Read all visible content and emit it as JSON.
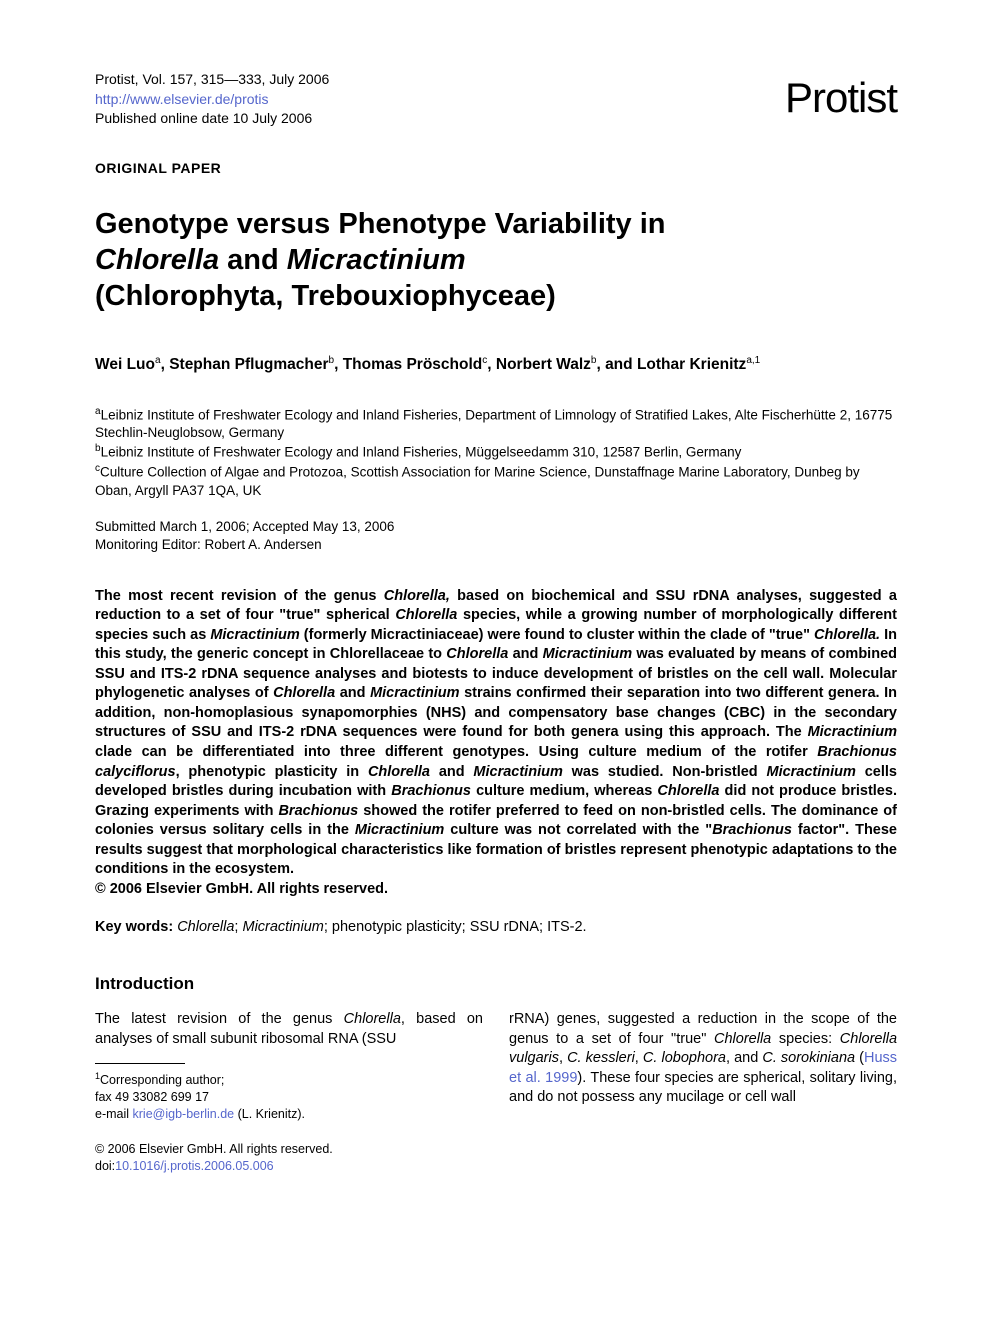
{
  "header": {
    "citation_line": "Protist, Vol. 157, 315—333, July 2006",
    "url": "http://www.elsevier.de/protis",
    "pub_online": "Published online date 10 July 2006",
    "journal_logo": "Protist"
  },
  "paper_type": "ORIGINAL PAPER",
  "title": {
    "line1_plain": "Genotype versus Phenotype Variability in ",
    "line2_italic1": "Chlorella",
    "line2_plain1": " and ",
    "line2_italic2": "Micractinium",
    "line3_plain": "(Chlorophyta, Trebouxiophyceae)"
  },
  "authors": {
    "a1": "Wei Luo",
    "a1_sup": "a",
    "a2": "Stephan Pflugmacher",
    "a2_sup": "b",
    "a3": "Thomas Pröschold",
    "a3_sup": "c",
    "a4": "Norbert Walz",
    "a4_sup": "b",
    "a5": "Lothar Krienitz",
    "a5_sup": "a,1",
    "sep": ", ",
    "and": ", and "
  },
  "affiliations": {
    "a_sup": "a",
    "a_text": "Leibniz Institute of Freshwater Ecology and Inland Fisheries, Department of Limnology of Stratified Lakes, Alte Fischerhütte 2, 16775 Stechlin-Neuglobsow, Germany",
    "b_sup": "b",
    "b_text": "Leibniz Institute of Freshwater Ecology and Inland Fisheries, Müggelseedamm 310, 12587 Berlin, Germany",
    "c_sup": "c",
    "c_text": "Culture Collection of Algae and Protozoa, Scottish Association for Marine Science, Dunstaffnage Marine Laboratory, Dunbeg by Oban, Argyll PA37 1QA, UK"
  },
  "dates": {
    "submitted": "Submitted March 1, 2006; Accepted May 13, 2006",
    "editor": "Monitoring Editor: Robert A. Andersen"
  },
  "abstract": {
    "p1a": "The most recent revision of the genus ",
    "p1i1": "Chlorella,",
    "p1b": " based on biochemical and SSU rDNA analyses, suggested a reduction to a set of four \"true\" spherical ",
    "p1i2": "Chlorella",
    "p1c": " species, while a growing number of morphologically different species such as ",
    "p1i3": "Micractinium",
    "p1d": " (formerly Micractiniaceae) were found to cluster within the clade of \"true\" ",
    "p1i4": "Chlorella.",
    "p1e": " In this study, the generic concept in Chlorellaceae to ",
    "p1i5": "Chlorella",
    "p1f": " and ",
    "p1i6": "Micractinium",
    "p1g": " was evaluated by means of combined SSU and ITS-2 rDNA sequence analyses and biotests to induce development of bristles on the cell wall. Molecular phylogenetic analyses of ",
    "p1i7": "Chlorella",
    "p1h": " and ",
    "p1i8": "Micractinium",
    "p1j": " strains confirmed their separation into two different genera. In addition, non-homoplasious synapomorphies (NHS) and compensatory base changes (CBC) in the secondary structures of SSU and ITS-2 rDNA sequences were found for both genera using this approach. The ",
    "p1i9": "Micractinium",
    "p1k": " clade can be differentiated into three different genotypes. Using culture medium of the rotifer ",
    "p1i10": "Brachionus calyciflorus",
    "p1l": ", phenotypic plasticity in ",
    "p1i11": "Chlorella",
    "p1m": " and ",
    "p1i12": "Micractinium",
    "p1n": " was studied. Non-bristled ",
    "p1i13": "Micractinium",
    "p1o": " cells developed bristles during incubation with ",
    "p1i14": "Brachionus",
    "p1p": " culture medium, whereas ",
    "p1i15": "Chlorella",
    "p1q": " did not produce bristles. Grazing experiments with ",
    "p1i16": "Brachionus",
    "p1r": " showed the rotifer preferred to feed on non-bristled cells. The dominance of colonies versus solitary cells in the ",
    "p1i17": "Micractinium",
    "p1s": " culture was not correlated with the \"",
    "p1i18": "Brachionus",
    "p1t": " factor\". These results suggest that morphological characteristics like formation of bristles represent phenotypic adaptations to the conditions in the ecosystem.",
    "copyright": "© 2006 Elsevier GmbH. All rights reserved."
  },
  "keywords": {
    "label": "Key words: ",
    "k1": "Chlorella",
    "k2": "Micractinium",
    "rest": "; phenotypic plasticity; SSU rDNA; ITS-2.",
    "sep": "; "
  },
  "intro": {
    "heading": "Introduction",
    "col1a": "The latest revision of the genus ",
    "col1i1": "Chlorella",
    "col1b": ", based on analyses of small subunit ribosomal RNA (SSU",
    "col2a": "rRNA) genes, suggested a reduction in the scope of the genus to a set of four \"true\" ",
    "col2i1": "Chlorella",
    "col2b": " species: ",
    "col2i2": "Chlorella vulgaris",
    "col2c": ", ",
    "col2i3": "C. kessleri",
    "col2d": ", ",
    "col2i4": "C. lobophora",
    "col2e": ", and ",
    "col2i5": "C. sorokiniana",
    "col2f": " (",
    "col2ref": "Huss et al. 1999",
    "col2g": "). These four species are spherical, solitary living, and do not possess any mucilage or cell wall"
  },
  "footnotes": {
    "sup": "1",
    "corr": "Corresponding author;",
    "fax": "fax 49 33082 699 17",
    "email_label": "e-mail ",
    "email": "krie@igb-berlin.de",
    "email_name": " (L. Krienitz)."
  },
  "footer": {
    "copyright": "© 2006 Elsevier GmbH. All rights reserved.",
    "doi_label": "doi:",
    "doi": "10.1016/j.protis.2006.05.006"
  }
}
